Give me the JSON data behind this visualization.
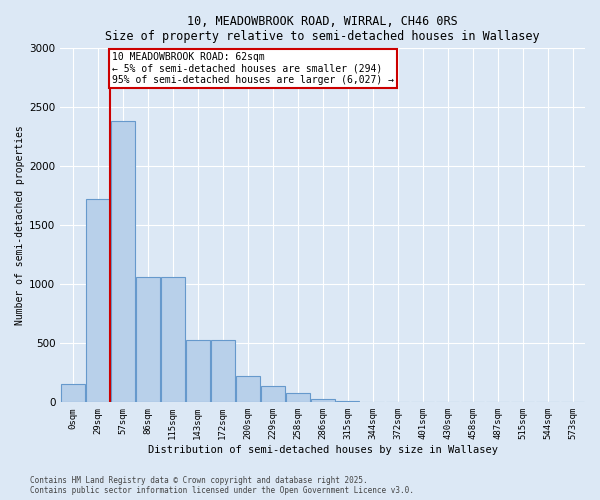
{
  "title1": "10, MEADOWBROOK ROAD, WIRRAL, CH46 0RS",
  "title2": "Size of property relative to semi-detached houses in Wallasey",
  "xlabel": "Distribution of semi-detached houses by size in Wallasey",
  "ylabel": "Number of semi-detached properties",
  "categories": [
    "0sqm",
    "29sqm",
    "57sqm",
    "86sqm",
    "115sqm",
    "143sqm",
    "172sqm",
    "200sqm",
    "229sqm",
    "258sqm",
    "286sqm",
    "315sqm",
    "344sqm",
    "372sqm",
    "401sqm",
    "430sqm",
    "458sqm",
    "487sqm",
    "515sqm",
    "544sqm",
    "573sqm"
  ],
  "values": [
    155,
    1720,
    2380,
    1060,
    1060,
    530,
    530,
    220,
    140,
    75,
    25,
    15,
    5,
    0,
    0,
    0,
    0,
    0,
    0,
    0,
    0
  ],
  "bar_color": "#b8d0ea",
  "bar_edge_color": "#6699cc",
  "annotation_label": "10 MEADOWBROOK ROAD: 62sqm",
  "annotation_line1": "← 5% of semi-detached houses are smaller (294)",
  "annotation_line2": "95% of semi-detached houses are larger (6,027) →",
  "annotation_box_facecolor": "#ffffff",
  "annotation_box_edgecolor": "#cc0000",
  "line_color": "#cc0000",
  "line_x_index": 1.5,
  "ylim": [
    0,
    3000
  ],
  "yticks": [
    0,
    500,
    1000,
    1500,
    2000,
    2500,
    3000
  ],
  "background_color": "#dce8f5",
  "plot_background": "#dce8f5",
  "footer1": "Contains HM Land Registry data © Crown copyright and database right 2025.",
  "footer2": "Contains public sector information licensed under the Open Government Licence v3.0."
}
